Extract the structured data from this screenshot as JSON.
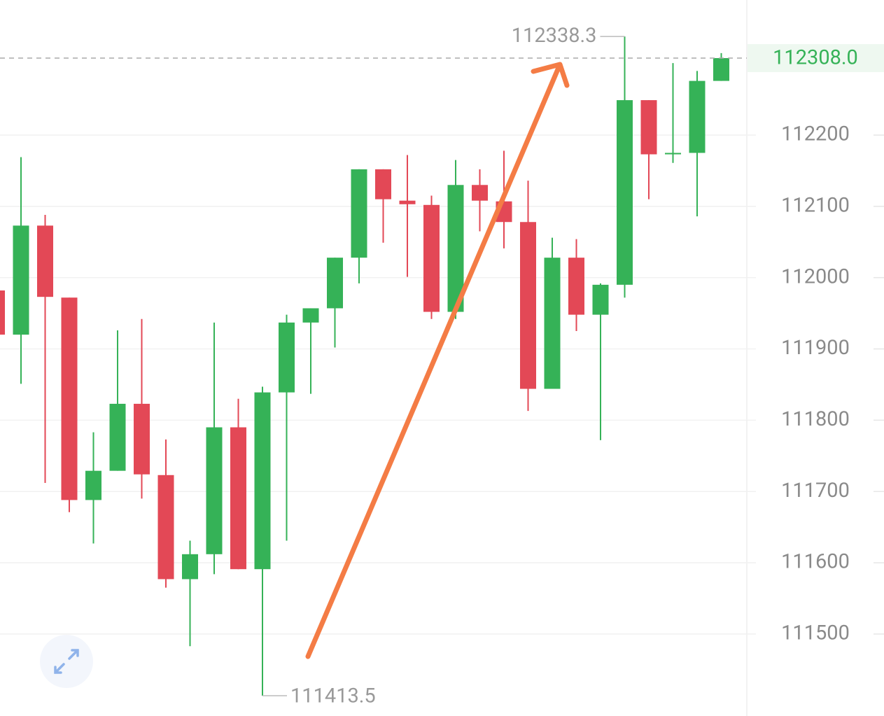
{
  "chart_data": {
    "type": "candlestick",
    "up_color": "#35b257",
    "down_color": "#e34856",
    "open": [
      111982,
      111920,
      112073,
      111972,
      111688,
      111729,
      111823,
      111723,
      111577,
      111612,
      111790,
      111591,
      111839,
      111937,
      111957,
      112028,
      112152,
      112108,
      112102,
      111952,
      112130,
      112107,
      112078,
      111844,
      112028,
      111948,
      111990,
      112249,
      112173,
      112175,
      112276
    ],
    "high": [
      111982,
      112169,
      112088,
      111972,
      111783,
      111926,
      111942,
      111773,
      111631,
      111937,
      111830,
      111847,
      111948,
      111957,
      112028,
      112152,
      112152,
      112172,
      112115,
      112165,
      112152,
      112178,
      112136,
      112056,
      112054,
      111992,
      112338.3,
      112249,
      112301,
      112290,
      112315
    ],
    "low": [
      111920,
      111851,
      111712,
      111671,
      111627,
      111729,
      111690,
      111565,
      111483,
      111584,
      111591,
      111413.5,
      111631,
      111837,
      111902,
      111992,
      112049,
      112001,
      111942,
      111942,
      112065,
      112041,
      111813,
      111844,
      111925,
      111772,
      111972,
      112110,
      112161,
      112086,
      112276
    ],
    "close": [
      111920,
      112073,
      111973,
      111688,
      111729,
      111823,
      111724,
      111577,
      111612,
      111790,
      111591,
      111839,
      111937,
      111957,
      112028,
      112152,
      112110,
      112103,
      111952,
      112130,
      112108,
      112078,
      111844,
      112028,
      111948,
      111990,
      112249,
      112173,
      112175,
      112276,
      112308
    ],
    "ylim": [
      111385,
      112389.5
    ],
    "yticks": [
      111500,
      111600,
      111700,
      111800,
      111900,
      112000,
      112100,
      112200
    ],
    "grid": true,
    "max_label": 112338.3,
    "min_label": 111413.5,
    "last_price": {
      "value": 112308,
      "label": "112308.0"
    }
  }
}
